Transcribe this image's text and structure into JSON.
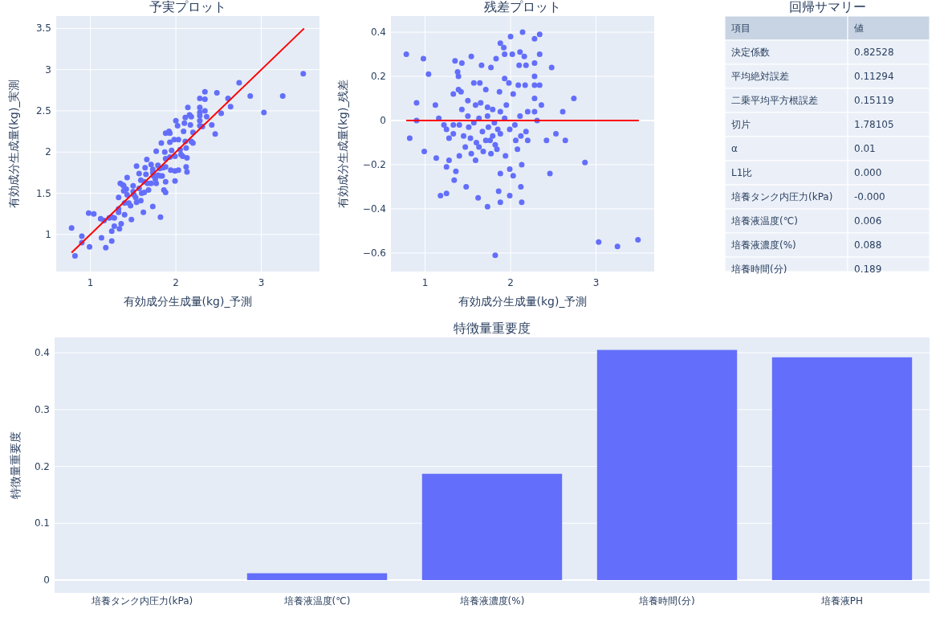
{
  "chart_data": [
    {
      "type": "scatter",
      "title": "予実プロット",
      "xlabel": "有効成分生成量(kg)_予測",
      "ylabel": "有効成分生成量(kg)_実測",
      "xlim": [
        0.6,
        3.68
      ],
      "ylim": [
        0.55,
        3.65
      ],
      "xticks": [
        1,
        2,
        3
      ],
      "yticks": [
        1,
        1.5,
        2,
        2.5,
        3,
        3.5
      ],
      "grid": true,
      "series": [
        {
          "type": "scatter",
          "marker": "circle",
          "color": "#636efa",
          "x": [
            0.78,
            0.98,
            1.04,
            0.9,
            1.12,
            1.16,
            0.9,
            0.82,
            0.99,
            1.13,
            1.28,
            1.25,
            1.34,
            1.36,
            1.18,
            1.25,
            1.48,
            1.62,
            1.73,
            1.82,
            1.86,
            1.88,
            1.88,
            1.99,
            2.03,
            1.99,
            2.12,
            2.13,
            2.13,
            2.46,
            2.42,
            2.53,
            2.64,
            2.87,
            3.03,
            3.25,
            3.49,
            2.74,
            2.61,
            2.48,
            2.34,
            2.28,
            2.14,
            2.0,
            1.88,
            1.92,
            1.54,
            1.35,
            1.43,
            1.38,
            1.39,
            1.66,
            1.77,
            1.83,
            1.93,
            2.02,
            2.11,
            2.16,
            2.1,
            2.18,
            2.28,
            2.34,
            2.28,
            2.28,
            2.34,
            2.17,
            2.09,
            1.98,
            1.93,
            1.64,
            1.57,
            1.33,
            1.42,
            1.39,
            1.71,
            1.87,
            2.03,
            2.28,
            2.36,
            2.2,
            2.28,
            2.31,
            2.11,
            2.05,
            2.18,
            2.2,
            2.08,
            2.12,
            2.06,
            1.94,
            1.84,
            1.77,
            1.68,
            1.59,
            1.54,
            1.47,
            1.4,
            1.28,
            1.25,
            1.22,
            1.33,
            1.4,
            1.33,
            1.51,
            1.45,
            1.5,
            1.43,
            1.5,
            1.59,
            1.65,
            1.73,
            1.79,
            1.73,
            1.63,
            1.57,
            1.67,
            1.74,
            1.81,
            1.88,
            1.95,
            1.93,
            1.85,
            1.79,
            1.71,
            1.6,
            1.53,
            1.88,
            1.99,
            1.76,
            1.82,
            1.63
          ],
          "values": [
            1.08,
            1.26,
            1.25,
            0.98,
            1.19,
            1.17,
            0.9,
            0.74,
            0.85,
            0.96,
            1.1,
            1.04,
            1.07,
            1.13,
            0.84,
            0.92,
            1.18,
            1.27,
            1.34,
            1.21,
            1.54,
            1.51,
            1.64,
            1.65,
            1.78,
            1.77,
            1.82,
            1.76,
            1.93,
            2.22,
            2.33,
            2.47,
            2.55,
            2.68,
            2.48,
            2.68,
            2.95,
            2.84,
            2.65,
            2.72,
            2.73,
            2.65,
            2.54,
            2.38,
            2.23,
            2.25,
            1.83,
            1.62,
            1.69,
            1.6,
            1.59,
            1.91,
            2.01,
            2.11,
            2.23,
            2.32,
            2.42,
            2.45,
            2.35,
            2.43,
            2.54,
            2.64,
            2.48,
            2.44,
            2.5,
            2.33,
            2.25,
            2.15,
            2.12,
            1.81,
            1.74,
            1.45,
            1.55,
            1.53,
            1.85,
            2.0,
            2.15,
            2.38,
            2.43,
            2.24,
            2.32,
            2.31,
            2.13,
            2.03,
            2.13,
            2.11,
            1.95,
            2.05,
            1.97,
            1.78,
            1.71,
            1.62,
            1.54,
            1.41,
            1.39,
            1.35,
            1.24,
            1.2,
            1.21,
            1.2,
            1.31,
            1.38,
            1.27,
            1.48,
            1.38,
            1.52,
            1.48,
            1.59,
            1.66,
            1.73,
            1.79,
            1.84,
            1.75,
            1.64,
            1.56,
            1.62,
            1.71,
            1.8,
            1.92,
            2.02,
            1.94,
            1.81,
            1.72,
            1.62,
            1.5,
            1.45,
            1.82,
            1.95,
            1.67,
            1.71,
            1.51
          ]
        },
        {
          "type": "line",
          "marker": "none",
          "color": "#ff0000",
          "line_style": "solid",
          "x": [
            0.78,
            3.5
          ],
          "values": [
            0.78,
            3.5
          ]
        }
      ]
    },
    {
      "type": "scatter",
      "title": "残差プロット",
      "xlabel": "有効成分生成量(kg)_予測",
      "ylabel": "有効成分生成量(kg)_残差",
      "xlim": [
        0.6,
        3.68
      ],
      "ylim": [
        -0.684,
        0.473
      ],
      "xticks": [
        1,
        2,
        3
      ],
      "yticks": [
        {
          "value": -0.6,
          "label": "−0.6"
        },
        {
          "value": -0.4,
          "label": "−0.4"
        },
        {
          "value": -0.2,
          "label": "−0.2"
        },
        0,
        0.2,
        0.4
      ],
      "grid": true,
      "series": [
        {
          "type": "scatter",
          "marker": "circle",
          "color": "#636efa",
          "x": [
            0.78,
            0.98,
            1.04,
            0.9,
            1.12,
            1.16,
            0.9,
            0.82,
            0.99,
            1.13,
            1.28,
            1.25,
            1.34,
            1.36,
            1.18,
            1.25,
            1.48,
            1.62,
            1.73,
            1.82,
            1.86,
            1.88,
            1.88,
            1.99,
            2.03,
            1.99,
            2.12,
            2.13,
            2.13,
            2.46,
            2.42,
            2.53,
            2.64,
            2.87,
            3.03,
            3.25,
            3.49,
            2.74,
            2.61,
            2.48,
            2.34,
            2.28,
            2.14,
            2.0,
            1.88,
            1.92,
            1.54,
            1.35,
            1.43,
            1.38,
            1.39,
            1.66,
            1.77,
            1.83,
            1.93,
            2.02,
            2.11,
            2.16,
            2.1,
            2.18,
            2.28,
            2.34,
            2.28,
            2.28,
            2.34,
            2.17,
            2.09,
            1.98,
            1.93,
            1.64,
            1.57,
            1.33,
            1.42,
            1.39,
            1.71,
            1.87,
            2.03,
            2.28,
            2.36,
            2.2,
            2.28,
            2.31,
            2.11,
            2.05,
            2.18,
            2.2,
            2.08,
            2.12,
            2.06,
            1.94,
            1.84,
            1.77,
            1.68,
            1.59,
            1.54,
            1.47,
            1.4,
            1.28,
            1.25,
            1.22,
            1.33,
            1.4,
            1.33,
            1.51,
            1.45,
            1.5,
            1.43,
            1.5,
            1.59,
            1.65,
            1.73,
            1.79,
            1.73,
            1.63,
            1.57,
            1.67,
            1.74,
            1.81,
            1.88,
            1.95,
            1.93,
            1.85,
            1.79,
            1.71,
            1.6,
            1.53,
            1.88,
            1.99,
            1.76,
            1.82,
            1.63
          ],
          "values": [
            0.3,
            0.28,
            0.21,
            0.08,
            0.07,
            0.01,
            0.0,
            -0.08,
            -0.14,
            -0.17,
            -0.18,
            -0.21,
            -0.27,
            -0.23,
            -0.34,
            -0.33,
            -0.3,
            -0.35,
            -0.39,
            -0.61,
            -0.32,
            -0.37,
            -0.24,
            -0.34,
            -0.25,
            -0.22,
            -0.3,
            -0.37,
            -0.2,
            -0.24,
            -0.09,
            -0.06,
            -0.09,
            -0.19,
            -0.55,
            -0.57,
            -0.54,
            0.1,
            0.04,
            0.24,
            0.39,
            0.37,
            0.4,
            0.38,
            0.35,
            0.33,
            0.29,
            0.27,
            0.26,
            0.22,
            0.2,
            0.25,
            0.24,
            0.28,
            0.3,
            0.3,
            0.31,
            0.29,
            0.25,
            0.25,
            0.26,
            0.3,
            0.2,
            0.16,
            0.16,
            0.16,
            0.16,
            0.17,
            0.19,
            0.17,
            0.17,
            0.12,
            0.13,
            0.14,
            0.14,
            0.13,
            0.12,
            0.1,
            0.07,
            0.04,
            0.04,
            0.0,
            0.02,
            -0.02,
            -0.05,
            -0.09,
            -0.13,
            -0.07,
            -0.09,
            -0.16,
            -0.13,
            -0.15,
            -0.14,
            -0.18,
            -0.15,
            -0.12,
            -0.16,
            -0.08,
            -0.04,
            -0.02,
            -0.02,
            -0.02,
            -0.06,
            -0.03,
            -0.07,
            0.02,
            0.05,
            0.09,
            0.07,
            0.08,
            0.06,
            0.05,
            0.02,
            0.01,
            -0.01,
            -0.05,
            -0.03,
            -0.01,
            0.04,
            0.07,
            0.01,
            -0.04,
            -0.07,
            -0.09,
            -0.1,
            -0.08,
            -0.06,
            -0.04,
            -0.09,
            -0.11,
            -0.12
          ]
        },
        {
          "type": "line",
          "marker": "none",
          "color": "#ff0000",
          "line_style": "solid",
          "x": [
            0.78,
            3.5
          ],
          "values": [
            0,
            0
          ]
        }
      ]
    },
    {
      "type": "other",
      "title": "回帰サマリー",
      "annotations": [
        "項目",
        "値",
        "決定係数",
        "0.82528",
        "平均絶対誤差",
        "0.11294",
        "二乗平均平方根誤差",
        "0.15119",
        "切片",
        "1.78105",
        "α",
        "0.01",
        "L1比",
        "0.000",
        "培養タンク内圧力(kPa)",
        "-0.000",
        "培養液温度(℃)",
        "0.006",
        "培養液濃度(%)",
        "0.088",
        "培養時間(分)",
        "0.189"
      ]
    },
    {
      "type": "bar",
      "title": "特徴量重要度",
      "ylabel": "特徴量重要度",
      "categories": [
        "培養タンク内圧力(kPa)",
        "培養液温度(℃)",
        "培養液濃度(%)",
        "培養時間(分)",
        "培養液PH"
      ],
      "ylim": [
        -0.0226,
        0.427
      ],
      "yticks": [
        0,
        0.1,
        0.2,
        0.3,
        0.4
      ],
      "grid": "y",
      "series": [
        {
          "color": "#636efa",
          "values": [
            0,
            0.012,
            0.187,
            0.405,
            0.392
          ]
        }
      ]
    }
  ]
}
